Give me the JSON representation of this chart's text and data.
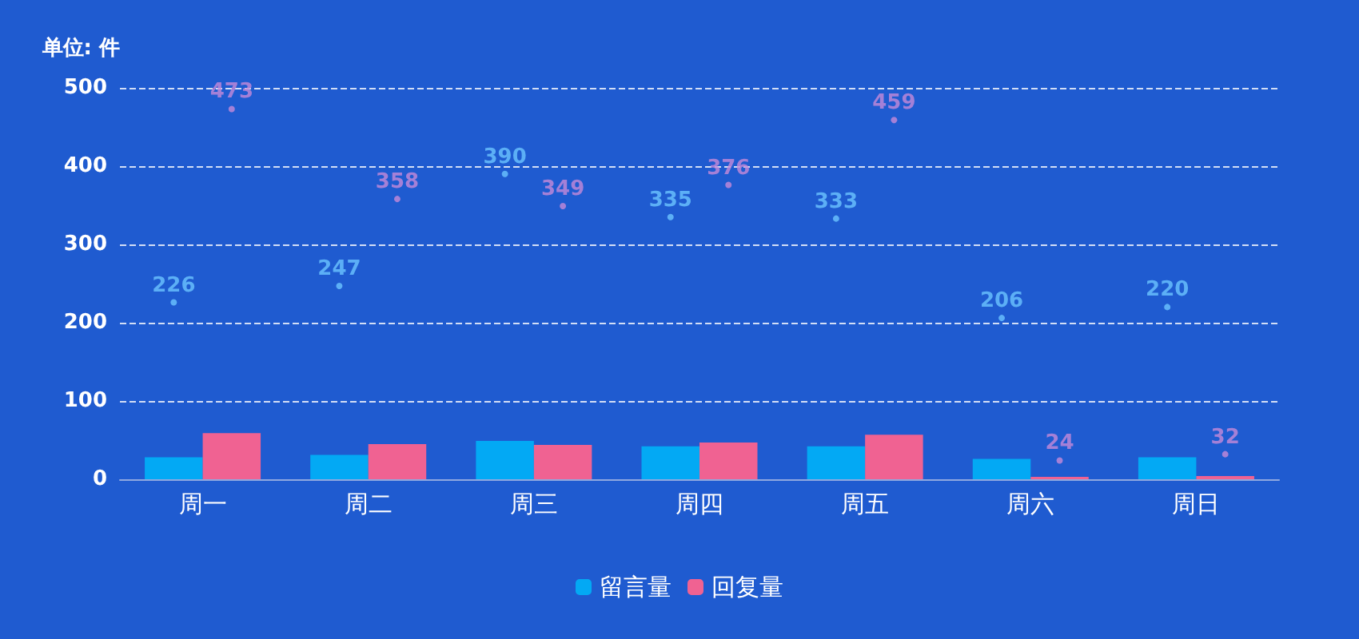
{
  "chart_data": {
    "type": "bar",
    "ylabel": "单位: 件",
    "categories": [
      "周一",
      "周二",
      "周三",
      "周四",
      "周五",
      "周六",
      "周日"
    ],
    "series": [
      {
        "name": "留言量",
        "color": "#03a9f4",
        "values": [
          28,
          31,
          49,
          42,
          42,
          26,
          28
        ]
      },
      {
        "name": "回复量",
        "color": "#f06292",
        "values": [
          59,
          45,
          44,
          47,
          57,
          3,
          4
        ]
      },
      {
        "type": "scatter",
        "color": "#6cc4ff",
        "marker": "circle",
        "data_labels": true,
        "values": [
          226,
          247,
          390,
          335,
          333,
          206,
          220
        ]
      },
      {
        "type": "scatter",
        "color": "#c58ad8",
        "marker": "circle",
        "data_labels": true,
        "values": [
          473,
          358,
          349,
          376,
          459,
          24,
          32
        ]
      }
    ],
    "ylim": [
      0,
      500
    ],
    "yticks": [
      0,
      100,
      200,
      300,
      400,
      500
    ],
    "grid": "y",
    "legend": "bottom"
  }
}
